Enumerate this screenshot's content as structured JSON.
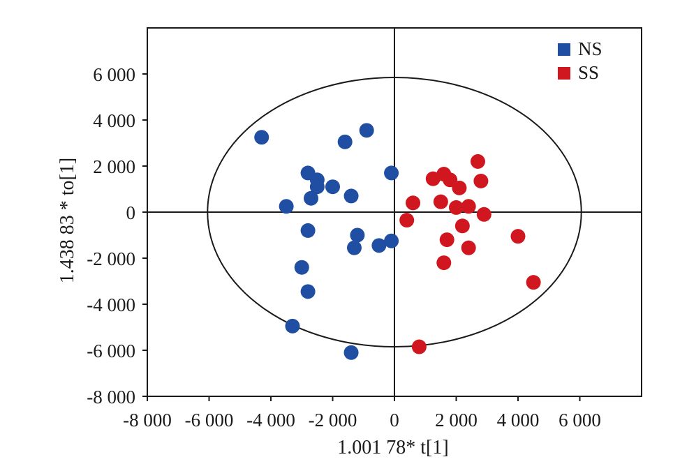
{
  "chart_data": {
    "type": "scatter",
    "title": "",
    "xlabel": "1.001 78* t[1]",
    "ylabel": "1.438 83 * to[1]",
    "xlim": [
      -8000,
      8000
    ],
    "ylim": [
      -8000,
      8000
    ],
    "x_ticks": [
      -8000,
      -6000,
      -4000,
      -2000,
      0,
      2000,
      4000,
      6000
    ],
    "x_tick_labels": [
      "-8 000",
      "-6 000",
      "-4 000",
      "-2 000",
      "0",
      "2 000",
      "4 000",
      "6 000"
    ],
    "y_ticks": [
      -8000,
      -6000,
      -4000,
      -2000,
      0,
      2000,
      4000,
      6000
    ],
    "y_tick_labels": [
      "-8 000",
      "-6 000",
      "-4 000",
      "-2 000",
      "0",
      "2 000",
      "4 000",
      "6 000"
    ],
    "reference_lines": {
      "x": 0,
      "y": 0
    },
    "confidence_ellipse": {
      "center": [
        0,
        0
      ],
      "x_radius": 6050,
      "y_radius": 5850
    },
    "grid": false,
    "legend": {
      "position": "top-right"
    },
    "series": [
      {
        "name": "NS",
        "color": "#1f4ea3",
        "points": [
          [
            -4300,
            3250
          ],
          [
            -1600,
            3050
          ],
          [
            -900,
            3550
          ],
          [
            -3500,
            250
          ],
          [
            -2800,
            1700
          ],
          [
            -2500,
            1400
          ],
          [
            -2500,
            1100
          ],
          [
            -2000,
            1100
          ],
          [
            -2700,
            600
          ],
          [
            -1400,
            700
          ],
          [
            -100,
            1700
          ],
          [
            -2800,
            -800
          ],
          [
            -1200,
            -1000
          ],
          [
            -1300,
            -1550
          ],
          [
            -500,
            -1450
          ],
          [
            -100,
            -1250
          ],
          [
            -3000,
            -2400
          ],
          [
            -2800,
            -3450
          ],
          [
            -3300,
            -4950
          ],
          [
            -1400,
            -6100
          ]
        ]
      },
      {
        "name": "SS",
        "color": "#d0171f",
        "points": [
          [
            2700,
            2200
          ],
          [
            1600,
            1650
          ],
          [
            1250,
            1450
          ],
          [
            1800,
            1400
          ],
          [
            2800,
            1350
          ],
          [
            2100,
            1050
          ],
          [
            600,
            400
          ],
          [
            1500,
            450
          ],
          [
            2000,
            200
          ],
          [
            2400,
            250
          ],
          [
            2900,
            -100
          ],
          [
            400,
            -350
          ],
          [
            2200,
            -600
          ],
          [
            1700,
            -1200
          ],
          [
            2400,
            -1550
          ],
          [
            4000,
            -1050
          ],
          [
            1600,
            -2200
          ],
          [
            4500,
            -3050
          ],
          [
            800,
            -5850
          ]
        ]
      }
    ]
  }
}
